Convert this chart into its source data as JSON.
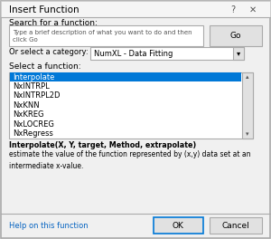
{
  "title": "Insert Function",
  "bg_color": "#f0f0f0",
  "dialog_bg": "#f0f0f0",
  "white": "#ffffff",
  "blue_sel": "#0078d7",
  "blue_sel_text": "#ffffff",
  "dark_text": "#000000",
  "gray_border": "#aaaaaa",
  "light_gray": "#e1e1e1",
  "search_label": "Search for a function:",
  "search_placeholder": "Type a brief description of what you want to do and then\nclick Go",
  "go_button": "Go",
  "category_label": "Or select a category:",
  "category_value": "NumXL - Data Fitting",
  "func_label": "Select a function:",
  "functions": [
    "Interpolate",
    "NxlNTRPL",
    "NxlNTRPL2D",
    "NxKNN",
    "NxKREG",
    "NxLOCREG",
    "NxRegress"
  ],
  "selected_func": "Interpolate",
  "func_signature": "Interpolate(X, Y, target, Method, extrapolate)",
  "func_desc": "estimate the value of the function represented by (x,y) data set at an\nintermediate x-value.",
  "help_link": "Help on this function",
  "ok_button": "OK",
  "cancel_button": "Cancel",
  "link_color": "#0563c1"
}
